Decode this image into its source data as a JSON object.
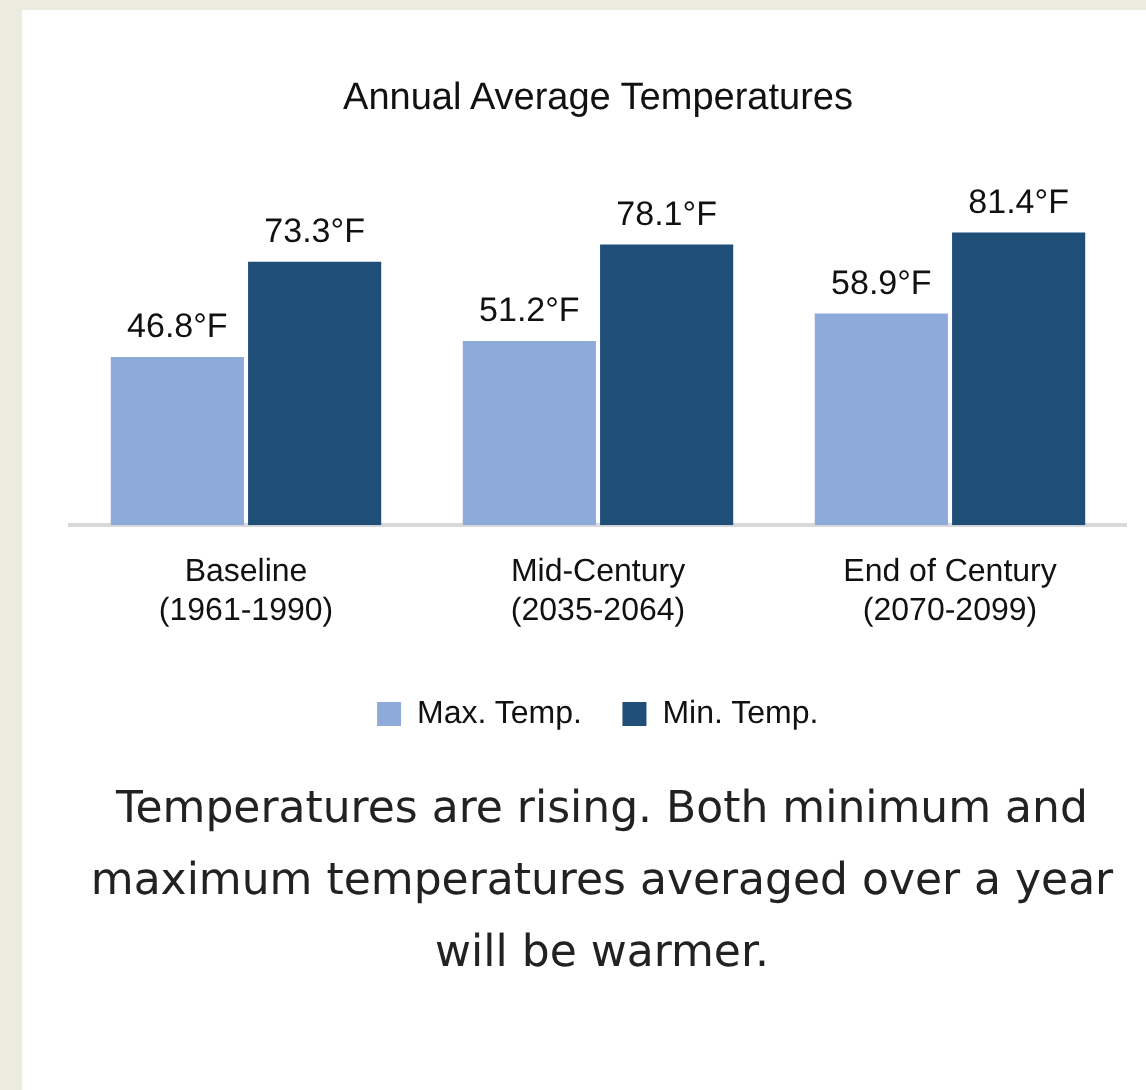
{
  "chart_data": {
    "type": "bar",
    "title": "Annual Average Temperatures",
    "categories": [
      "Baseline (1961-1990)",
      "Mid-Century (2035-2064)",
      "End of Century (2070-2099)"
    ],
    "series": [
      {
        "name": "Max. Temp.",
        "color": "#8eaadb",
        "values": [
          46.8,
          51.2,
          58.9
        ],
        "value_labels": [
          "46.8°F",
          "51.2°F",
          "58.9°F"
        ]
      },
      {
        "name": "Min. Temp.",
        "color": "#1f4e79",
        "values": [
          73.3,
          78.1,
          81.4
        ],
        "value_labels": [
          "73.3°F",
          "78.1°F",
          "81.4°F"
        ]
      }
    ],
    "legend": "bottom",
    "grid": false,
    "tick_labels": "x",
    "annotations": [
      "Temperatures are rising. Both minimum and maximum temperatures averaged over a year will be warmer."
    ]
  }
}
